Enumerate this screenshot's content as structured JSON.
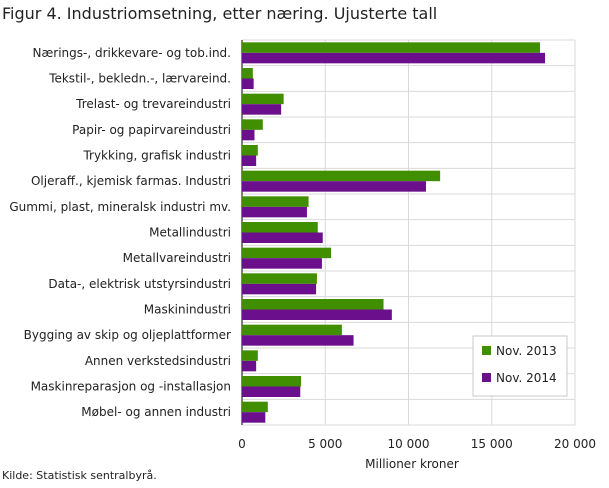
{
  "figure": {
    "title": "Figur 4. Industriomsetning, etter næring. Ujusterte tall",
    "source": "Kilde: Statistisk sentralbyrå."
  },
  "colors": {
    "nov2013": "#3f8f00",
    "nov2014": "#6b0f8c"
  },
  "chart_data": {
    "type": "bar",
    "orientation": "horizontal",
    "title": "Figur 4. Industriomsetning, etter næring. Ujusterte tall",
    "xlabel": "Millioner  kroner",
    "ylabel": "",
    "xlim": [
      0,
      20000
    ],
    "x_ticks": [
      0,
      5000,
      10000,
      15000,
      20000
    ],
    "x_tick_labels": [
      "0",
      "5 000",
      "10 000",
      "15 000",
      "20 000"
    ],
    "grid": true,
    "legend_position": "bottom-right",
    "categories": [
      "Nærings-, drikkevare- og tob.ind.",
      "Tekstil-, bekledn.-, lærvareind.",
      "Trelast- og trevareindustri",
      "Papir- og papirvareindustri",
      "Trykking, grafisk industri",
      "Oljeraff., kjemisk farmas. Industri",
      "Gummi, plast, mineralsk industri mv.",
      "Metallindustri",
      "Metallvareindustri",
      "Data-, elektrisk utstyrsindustri",
      "Maskinindustri",
      "Bygging av skip og oljeplattformer",
      "Annen verkstedsindustri",
      "Maskinreparasjon og -installasjon",
      "Møbel- og annen industri"
    ],
    "series": [
      {
        "name": "Nov. 2013",
        "values": [
          17900,
          650,
          2500,
          1250,
          950,
          11900,
          4000,
          4550,
          5350,
          4500,
          8500,
          6000,
          950,
          3550,
          1550
        ]
      },
      {
        "name": "Nov. 2014",
        "values": [
          18200,
          700,
          2350,
          750,
          850,
          11050,
          3900,
          4850,
          4800,
          4450,
          9000,
          6700,
          850,
          3500,
          1400
        ]
      }
    ]
  }
}
